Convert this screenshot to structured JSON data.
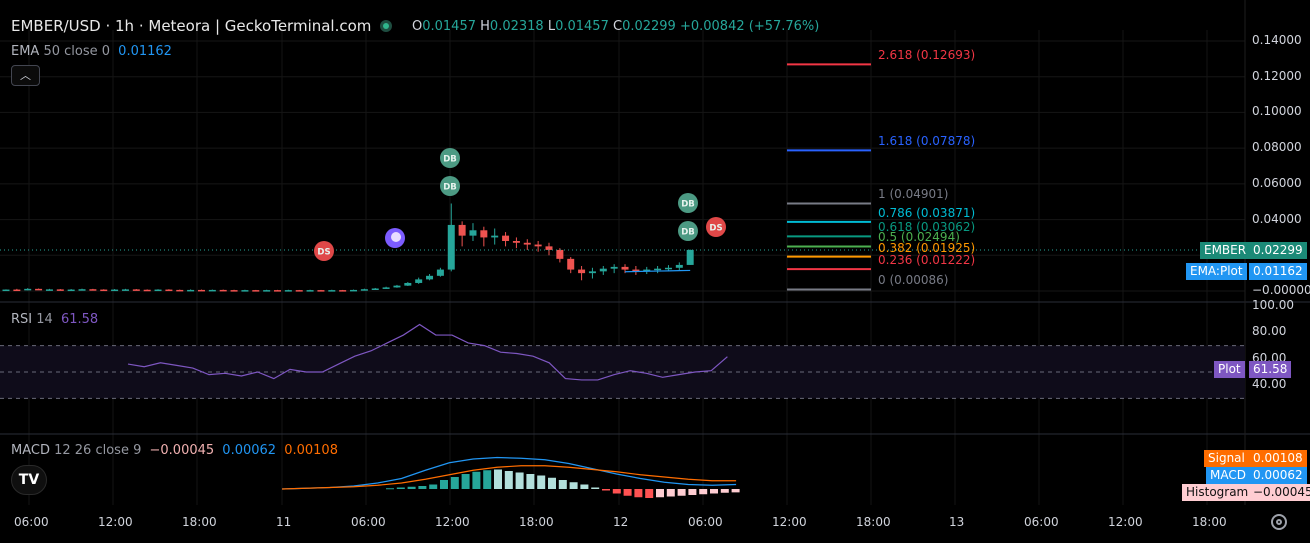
{
  "header": {
    "title": "EMBER/USD · 1h · Meteora | GeckoTerminal.com",
    "ohlc": {
      "o_label": "O",
      "o": "0.01457",
      "h_label": "H",
      "h": "0.02318",
      "l_label": "L",
      "l": "0.01457",
      "c_label": "C",
      "c": "0.02299",
      "change": "+0.00842 (+57.76%)"
    }
  },
  "ema": {
    "label": "EMA",
    "params": "50 close 0",
    "value": "0.01162"
  },
  "collapse_icon": "chevron-up-icon",
  "price_axis": [
    "0.14000",
    "0.12000",
    "0.10000",
    "0.08000",
    "0.06000",
    "0.04000",
    "0.02000",
    "0.00000"
  ],
  "price_axis_prefix": "−",
  "fib_levels": [
    {
      "ratio": "2.618",
      "price": "0.12693",
      "color": "#f23645"
    },
    {
      "ratio": "1.618",
      "price": "0.07878",
      "color": "#2962ff"
    },
    {
      "ratio": "1",
      "price": "0.04901",
      "color": "#787b86"
    },
    {
      "ratio": "0.786",
      "price": "0.03871",
      "color": "#00bcd4"
    },
    {
      "ratio": "0.618",
      "price": "0.03062",
      "color": "#089981"
    },
    {
      "ratio": "0.5",
      "price": "0.02494",
      "color": "#4caf50"
    },
    {
      "ratio": "0.382",
      "price": "0.01925",
      "color": "#ff9800"
    },
    {
      "ratio": "0.236",
      "price": "0.01222",
      "color": "#f23645"
    },
    {
      "ratio": "0",
      "price": "0.00086",
      "color": "#787b86"
    }
  ],
  "tags": {
    "price": {
      "name": "EMBER",
      "value": "0.02299"
    },
    "ema": {
      "name": "EMA:Plot",
      "value": "0.01162"
    },
    "rsi": {
      "name": "Plot",
      "value": "61.58"
    },
    "signal": {
      "name": "Signal",
      "value": "0.00108"
    },
    "macd": {
      "name": "MACD",
      "value": "0.00062"
    },
    "histogram": {
      "name": "Histogram",
      "value": "−0.00045"
    }
  },
  "markers": [
    {
      "label": "DS",
      "kind": "sell"
    },
    {
      "label": "DB",
      "kind": "buy"
    },
    {
      "label": "DB",
      "kind": "buy"
    },
    {
      "label": "DB",
      "kind": "buy"
    },
    {
      "label": "DB",
      "kind": "buy"
    },
    {
      "label": "DS",
      "kind": "sell"
    }
  ],
  "rsi": {
    "label": "RSI",
    "params": "14",
    "value": "61.58",
    "axis": [
      "100.00",
      "80.00",
      "60.00",
      "40.00"
    ]
  },
  "macd": {
    "label": "MACD",
    "params": "12 26 close 9",
    "hist": "−0.00045",
    "macd": "0.00062",
    "signal": "0.00108"
  },
  "time_axis": [
    "06:00",
    "12:00",
    "18:00",
    "11",
    "06:00",
    "12:00",
    "18:00",
    "12",
    "06:00",
    "12:00",
    "18:00",
    "13",
    "06:00",
    "12:00",
    "18:00"
  ],
  "colors": {
    "up": "#26a69a",
    "down": "#ef5350",
    "ema": "#2196f3",
    "rsi": "#7e57c2",
    "macd": "#2196f3",
    "signal": "#ff6d00"
  },
  "tv_logo": "TV",
  "settings_icon": "gear-icon"
}
